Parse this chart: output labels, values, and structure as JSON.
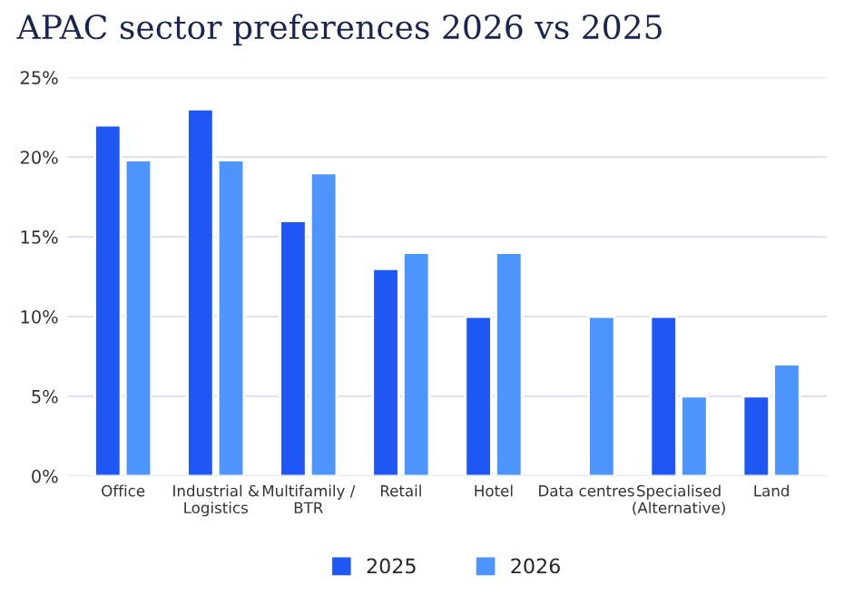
{
  "chart_data": {
    "type": "bar",
    "title": "APAC sector preferences 2026 vs 2025",
    "categories": [
      "Office",
      "Industrial &\nLogistics",
      "Multifamily /\nBTR",
      "Retail",
      "Hotel",
      "Data centres",
      "Specialised\n(Alternative)",
      "Land"
    ],
    "series": [
      {
        "name": "2025",
        "color": "#1f57f5",
        "values": [
          22,
          23,
          16,
          13,
          10,
          null,
          10,
          5
        ]
      },
      {
        "name": "2026",
        "color": "#4d94ff",
        "values": [
          19.8,
          19.8,
          19,
          14,
          14,
          10,
          5,
          7
        ]
      }
    ],
    "ylim": [
      0,
      25
    ],
    "yticks": [
      {
        "value": 0,
        "label": "0%"
      },
      {
        "value": 5,
        "label": "5%"
      },
      {
        "value": 10,
        "label": "10%"
      },
      {
        "value": 15,
        "label": "15%"
      },
      {
        "value": 20,
        "label": "20%"
      },
      {
        "value": 25,
        "label": "25%"
      }
    ],
    "grid": "y",
    "legend": "bottom"
  }
}
